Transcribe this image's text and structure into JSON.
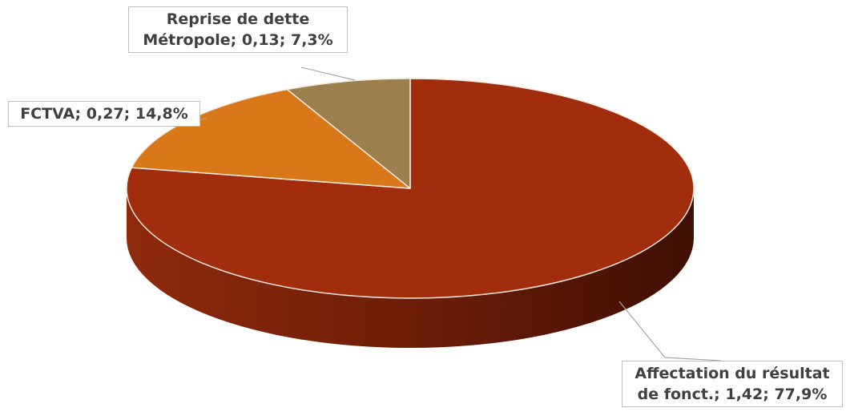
{
  "chart_data": {
    "type": "pie",
    "style": "3d",
    "categories": [
      "Affectation du résultat de fonct.",
      "FCTVA",
      "Reprise de dette Métropole"
    ],
    "values": [
      1.42,
      0.27,
      0.13
    ],
    "percentages": [
      "77,9%",
      "14,8%",
      "7,3%"
    ],
    "colors": [
      "#a22d0d",
      "#d87818",
      "#9b7f4d"
    ],
    "side_colors": [
      "#7a210a",
      "#a65a12",
      "#735e37"
    ],
    "labels": [
      {
        "line1": "Affectation du résultat",
        "line2": "de fonct.; 1,42; 77,9%"
      },
      {
        "line1": "FCTVA; 0,27; 14,8%",
        "line2": ""
      },
      {
        "line1": "Reprise de dette",
        "line2": "Métropole; 0,13; 7,3%"
      }
    ],
    "legend": "none"
  }
}
